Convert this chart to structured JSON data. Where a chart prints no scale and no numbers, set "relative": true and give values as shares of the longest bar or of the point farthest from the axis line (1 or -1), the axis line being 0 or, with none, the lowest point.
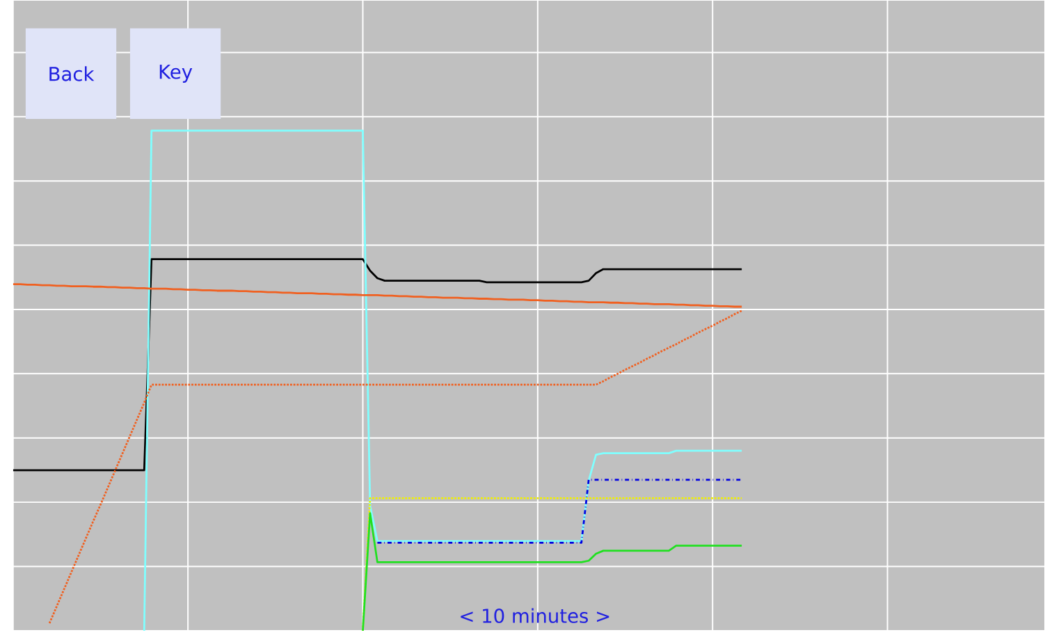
{
  "chart_data": {
    "type": "line",
    "relative": true,
    "grid": true,
    "annotations": [
      "Back",
      "Key",
      "< 10 minutes >"
    ],
    "categories": [
      null,
      null,
      null,
      null,
      null,
      null,
      null,
      null,
      null,
      null,
      null,
      null,
      null,
      null,
      null,
      null,
      null,
      null,
      null,
      null,
      null,
      null,
      null,
      null,
      null,
      null,
      null,
      null,
      null,
      null,
      null,
      null,
      null,
      null,
      null,
      null,
      null,
      null,
      null,
      null,
      null,
      null,
      null,
      null,
      null,
      null,
      null,
      null,
      null,
      null,
      null,
      null,
      null,
      null,
      null,
      null,
      null,
      null,
      null,
      null,
      null,
      null,
      null,
      null,
      null,
      null,
      null,
      null,
      null,
      null,
      null,
      null,
      null,
      null,
      null,
      null,
      null,
      null,
      null,
      null,
      null,
      null,
      null,
      null,
      null,
      null,
      null,
      null,
      null,
      null,
      null,
      null,
      null,
      null,
      null,
      null,
      null,
      null,
      null,
      null,
      null
    ],
    "series": [
      {
        "color": "#000000",
        "line_style": "solid",
        "values": [
          0.321,
          0.321,
          0.321,
          0.321,
          0.321,
          0.321,
          0.321,
          0.321,
          0.321,
          0.321,
          0.321,
          0.321,
          0.321,
          0.321,
          0.321,
          0.321,
          0.321,
          0.321,
          0.321,
          0.743,
          0.743,
          0.743,
          0.743,
          0.743,
          0.743,
          0.743,
          0.743,
          0.743,
          0.743,
          0.743,
          0.743,
          0.743,
          0.743,
          0.743,
          0.743,
          0.743,
          0.743,
          0.743,
          0.743,
          0.743,
          0.743,
          0.743,
          0.743,
          0.743,
          0.743,
          0.743,
          0.743,
          0.743,
          0.743,
          0.72,
          0.705,
          0.7,
          0.7,
          0.7,
          0.7,
          0.7,
          0.7,
          0.7,
          0.7,
          0.7,
          0.7,
          0.7,
          0.7,
          0.7,
          0.7,
          0.697,
          0.697,
          0.697,
          0.697,
          0.697,
          0.697,
          0.697,
          0.697,
          0.697,
          0.697,
          0.697,
          0.697,
          0.697,
          0.697,
          0.7,
          0.715,
          0.723,
          0.723,
          0.723,
          0.723,
          0.723,
          0.723,
          0.723,
          0.723,
          0.723,
          0.723,
          0.723,
          0.723,
          0.723,
          0.723,
          0.723,
          0.723,
          0.723,
          0.723,
          0.723,
          0.723
        ]
      },
      {
        "color": "#80ffff",
        "line_style": "solid",
        "values": [
          null,
          null,
          null,
          null,
          null,
          null,
          null,
          null,
          null,
          null,
          null,
          null,
          null,
          null,
          null,
          null,
          null,
          null,
          0,
          1,
          1,
          1,
          1,
          1,
          1,
          1,
          1,
          1,
          1,
          1,
          1,
          1,
          1,
          1,
          1,
          1,
          1,
          1,
          1,
          1,
          1,
          1,
          1,
          1,
          1,
          1,
          1,
          1,
          1,
          0.25,
          0.179,
          0.179,
          0.179,
          0.179,
          0.179,
          0.179,
          0.179,
          0.179,
          0.179,
          0.179,
          0.179,
          0.179,
          0.179,
          0.179,
          0.179,
          0.179,
          0.179,
          0.179,
          0.179,
          0.179,
          0.179,
          0.179,
          0.179,
          0.179,
          0.179,
          0.179,
          0.179,
          0.179,
          0.179,
          0.3,
          0.352,
          0.355,
          0.355,
          0.355,
          0.355,
          0.355,
          0.355,
          0.355,
          0.355,
          0.355,
          0.355,
          0.36,
          0.36,
          0.36,
          0.36,
          0.36,
          0.36,
          0.36,
          0.36,
          0.36,
          0.36
        ]
      },
      {
        "color": "#f06020",
        "line_style": "solid",
        "values": [
          0.693,
          0.693,
          0.692,
          0.692,
          0.691,
          0.691,
          0.69,
          0.69,
          0.689,
          0.689,
          0.689,
          0.688,
          0.688,
          0.687,
          0.687,
          0.686,
          0.686,
          0.685,
          0.685,
          0.684,
          0.684,
          0.684,
          0.683,
          0.683,
          0.682,
          0.682,
          0.681,
          0.681,
          0.68,
          0.68,
          0.68,
          0.679,
          0.679,
          0.678,
          0.678,
          0.677,
          0.677,
          0.676,
          0.676,
          0.675,
          0.675,
          0.675,
          0.674,
          0.674,
          0.673,
          0.673,
          0.672,
          0.672,
          0.671,
          0.671,
          0.671,
          0.67,
          0.67,
          0.669,
          0.669,
          0.668,
          0.668,
          0.667,
          0.667,
          0.666,
          0.666,
          0.666,
          0.665,
          0.665,
          0.664,
          0.664,
          0.663,
          0.663,
          0.662,
          0.662,
          0.662,
          0.661,
          0.661,
          0.66,
          0.66,
          0.659,
          0.659,
          0.658,
          0.658,
          0.657,
          0.657,
          0.657,
          0.656,
          0.656,
          0.655,
          0.655,
          0.654,
          0.654,
          0.653,
          0.653,
          0.653,
          0.652,
          0.652,
          0.651,
          0.651,
          0.65,
          0.65,
          0.649,
          0.649,
          0.648,
          0.648
        ]
      },
      {
        "color": "#f06020",
        "line_style": "dotted",
        "values": [
          null,
          null,
          null,
          null,
          null,
          0.015,
          0.049,
          0.083,
          0.117,
          0.151,
          0.185,
          0.219,
          0.252,
          0.286,
          0.32,
          0.354,
          0.388,
          0.422,
          0.456,
          0.492,
          0.492,
          0.492,
          0.492,
          0.492,
          0.492,
          0.492,
          0.492,
          0.492,
          0.492,
          0.492,
          0.492,
          0.492,
          0.492,
          0.492,
          0.492,
          0.492,
          0.492,
          0.492,
          0.492,
          0.492,
          0.492,
          0.492,
          0.492,
          0.492,
          0.492,
          0.492,
          0.492,
          0.492,
          0.492,
          0.492,
          0.492,
          0.492,
          0.492,
          0.492,
          0.492,
          0.492,
          0.492,
          0.492,
          0.492,
          0.492,
          0.492,
          0.492,
          0.492,
          0.492,
          0.492,
          0.492,
          0.492,
          0.492,
          0.492,
          0.492,
          0.492,
          0.492,
          0.492,
          0.492,
          0.492,
          0.492,
          0.492,
          0.492,
          0.492,
          0.492,
          0.492,
          0.499,
          0.507,
          0.514,
          0.522,
          0.529,
          0.536,
          0.544,
          0.551,
          0.559,
          0.566,
          0.573,
          0.581,
          0.588,
          0.596,
          0.603,
          0.61,
          0.618,
          0.625,
          0.633,
          0.64
        ]
      },
      {
        "color": "#0000e0",
        "line_style": "dashed",
        "values": [
          null,
          null,
          null,
          null,
          null,
          null,
          null,
          null,
          null,
          null,
          null,
          null,
          null,
          null,
          null,
          null,
          null,
          null,
          null,
          null,
          null,
          null,
          null,
          null,
          null,
          null,
          null,
          null,
          null,
          null,
          null,
          null,
          null,
          null,
          null,
          null,
          null,
          null,
          null,
          null,
          null,
          null,
          null,
          null,
          null,
          null,
          null,
          null,
          null,
          null,
          0.176,
          0.176,
          0.176,
          0.176,
          0.176,
          0.176,
          0.176,
          0.176,
          0.176,
          0.176,
          0.176,
          0.176,
          0.176,
          0.176,
          0.176,
          0.176,
          0.176,
          0.176,
          0.176,
          0.176,
          0.176,
          0.176,
          0.176,
          0.176,
          0.176,
          0.176,
          0.176,
          0.176,
          0.176,
          0.302,
          0.302,
          0.302,
          0.302,
          0.302,
          0.302,
          0.302,
          0.302,
          0.302,
          0.302,
          0.302,
          0.302,
          0.302,
          0.302,
          0.302,
          0.302,
          0.302,
          0.302,
          0.302,
          0.302,
          0.302,
          0.302
        ]
      },
      {
        "color": "#f0f000",
        "line_style": "dotted",
        "values": [
          null,
          null,
          null,
          null,
          null,
          null,
          null,
          null,
          null,
          null,
          null,
          null,
          null,
          null,
          null,
          null,
          null,
          null,
          null,
          null,
          null,
          null,
          null,
          null,
          null,
          null,
          null,
          null,
          null,
          null,
          null,
          null,
          null,
          null,
          null,
          null,
          null,
          null,
          null,
          null,
          null,
          null,
          null,
          null,
          null,
          null,
          null,
          null,
          0,
          0.265,
          0.265,
          0.265,
          0.265,
          0.265,
          0.265,
          0.265,
          0.265,
          0.265,
          0.265,
          0.265,
          0.265,
          0.265,
          0.265,
          0.265,
          0.265,
          0.265,
          0.265,
          0.265,
          0.265,
          0.265,
          0.265,
          0.265,
          0.265,
          0.265,
          0.265,
          0.265,
          0.265,
          0.265,
          0.265,
          0.265,
          0.265,
          0.265,
          0.265,
          0.265,
          0.265,
          0.265,
          0.265,
          0.265,
          0.265,
          0.265,
          0.265,
          0.265,
          0.265,
          0.265,
          0.265,
          0.265,
          0.265,
          0.265,
          0.265,
          0.265,
          0.265
        ]
      },
      {
        "color": "#20e020",
        "line_style": "solid",
        "values": [
          null,
          null,
          null,
          null,
          null,
          null,
          null,
          null,
          null,
          null,
          null,
          null,
          null,
          null,
          null,
          null,
          null,
          null,
          null,
          null,
          null,
          null,
          null,
          null,
          null,
          null,
          null,
          null,
          null,
          null,
          null,
          null,
          null,
          null,
          null,
          null,
          null,
          null,
          null,
          null,
          null,
          null,
          null,
          null,
          null,
          null,
          null,
          null,
          0,
          0.235,
          0.137,
          0.137,
          0.137,
          0.137,
          0.137,
          0.137,
          0.137,
          0.137,
          0.137,
          0.137,
          0.137,
          0.137,
          0.137,
          0.137,
          0.137,
          0.137,
          0.137,
          0.137,
          0.137,
          0.137,
          0.137,
          0.137,
          0.137,
          0.137,
          0.137,
          0.137,
          0.137,
          0.137,
          0.137,
          0.14,
          0.154,
          0.16,
          0.16,
          0.16,
          0.16,
          0.16,
          0.16,
          0.16,
          0.16,
          0.16,
          0.16,
          0.17,
          0.17,
          0.17,
          0.17,
          0.17,
          0.17,
          0.17,
          0.17,
          0.17,
          0.17
        ]
      }
    ]
  }
}
